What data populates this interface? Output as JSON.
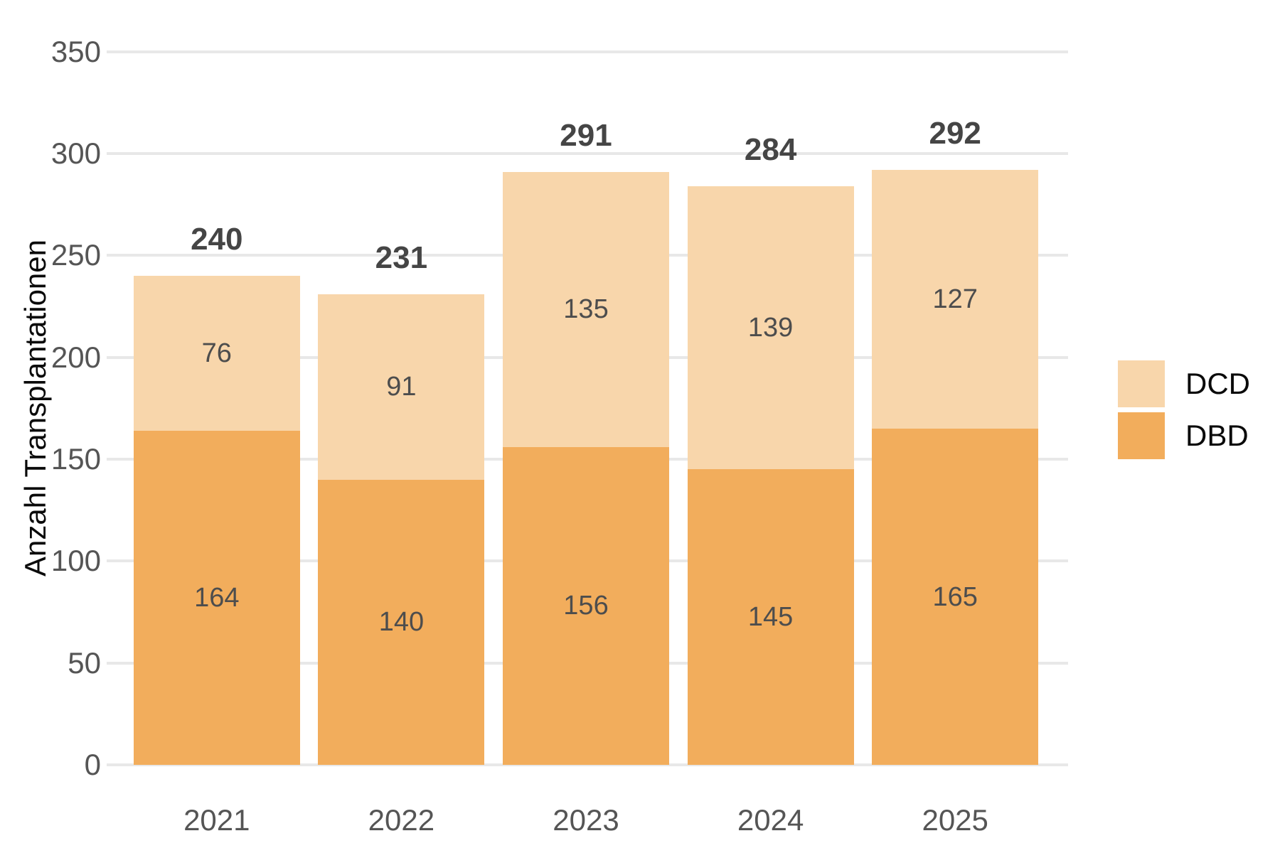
{
  "chart_data": {
    "type": "bar",
    "stacked": true,
    "title": "",
    "xlabel": "",
    "ylabel": "Anzahl Transplantationen",
    "categories": [
      "2021",
      "2022",
      "2023",
      "2024",
      "2025"
    ],
    "series": [
      {
        "name": "DBD",
        "color": "#F2AD5C",
        "values": [
          164,
          140,
          156,
          145,
          165
        ]
      },
      {
        "name": "DCD",
        "color": "#F8D6AB",
        "values": [
          76,
          91,
          135,
          139,
          127
        ]
      }
    ],
    "totals": [
      240,
      231,
      291,
      284,
      292
    ],
    "ylim": [
      0,
      350
    ],
    "yticks": [
      0,
      50,
      100,
      150,
      200,
      250,
      300,
      350
    ],
    "grid": true,
    "gridline_color": "#e8e8e8",
    "legend_position": "right",
    "legend": [
      "DCD",
      "DBD"
    ]
  }
}
